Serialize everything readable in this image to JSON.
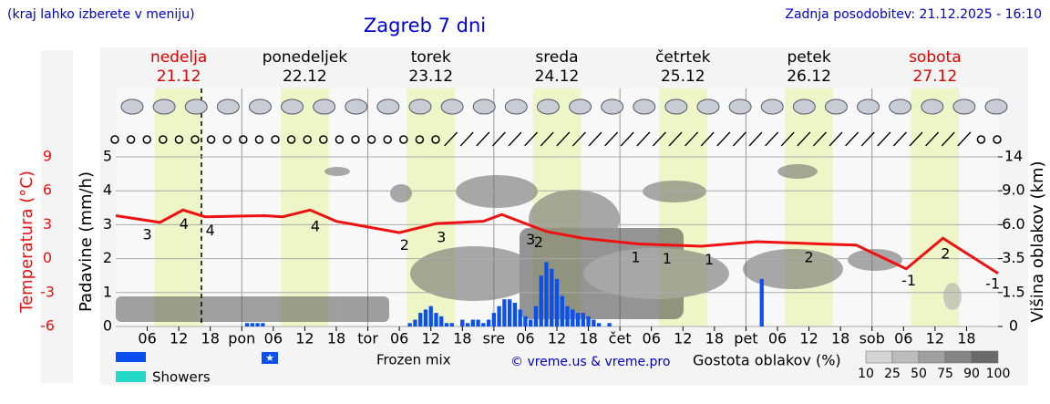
{
  "header": {
    "hint": "(kraj lahko izberete v meniju)",
    "title": "Zagreb 7 dni",
    "updated": "Zadnja posodobitev: 21.12.2025 - 16:10"
  },
  "chart_data": {
    "type": "meteogram",
    "xlim": [
      0,
      168
    ],
    "xticks": [
      {
        "value": 6,
        "label": "06"
      },
      {
        "value": 12,
        "label": "12"
      },
      {
        "value": 18,
        "label": "18"
      },
      {
        "value": 24,
        "label": "pon"
      },
      {
        "value": 30,
        "label": "06"
      },
      {
        "value": 36,
        "label": "12"
      },
      {
        "value": 42,
        "label": "18"
      },
      {
        "value": 48,
        "label": "tor"
      },
      {
        "value": 54,
        "label": "06"
      },
      {
        "value": 60,
        "label": "12"
      },
      {
        "value": 66,
        "label": "18"
      },
      {
        "value": 72,
        "label": "sre"
      },
      {
        "value": 78,
        "label": "06"
      },
      {
        "value": 84,
        "label": "12"
      },
      {
        "value": 90,
        "label": "18"
      },
      {
        "value": 96,
        "label": "čet"
      },
      {
        "value": 102,
        "label": "06"
      },
      {
        "value": 108,
        "label": "12"
      },
      {
        "value": 114,
        "label": "18"
      },
      {
        "value": 120,
        "label": "pet"
      },
      {
        "value": 126,
        "label": "06"
      },
      {
        "value": 132,
        "label": "12"
      },
      {
        "value": 138,
        "label": "18"
      },
      {
        "value": 144,
        "label": "sob"
      },
      {
        "value": 150,
        "label": "06"
      },
      {
        "value": 156,
        "label": "12"
      },
      {
        "value": 162,
        "label": "18"
      }
    ],
    "days": [
      {
        "name": "nedelja",
        "date": "21.12",
        "color": "#e00000"
      },
      {
        "name": "ponedeljek",
        "date": "22.12",
        "color": "#000000"
      },
      {
        "name": "torek",
        "date": "23.12",
        "color": "#000000"
      },
      {
        "name": "sreda",
        "date": "24.12",
        "color": "#000000"
      },
      {
        "name": "četrtek",
        "date": "25.12",
        "color": "#000000"
      },
      {
        "name": "petek",
        "date": "26.12",
        "color": "#000000"
      },
      {
        "name": "sobota",
        "date": "27.12",
        "color": "#e00000"
      }
    ],
    "ylabel": "Padavine (mm/h)",
    "ylim": [
      0,
      5
    ],
    "yticks": [
      0,
      1,
      2,
      3,
      4,
      5
    ],
    "y2label": "Višina oblakov (km)",
    "y2ticks": [
      0,
      1.5,
      3.5,
      {
        "value": 6,
        "label": "6.0"
      },
      {
        "value": 9,
        "label": "9.0"
      },
      14
    ],
    "temperature": {
      "label": "Temperatura (°C)",
      "color": "#ee1111",
      "lim": [
        -6,
        9
      ],
      "ticks": [
        9,
        6,
        3,
        0,
        -3,
        -6
      ],
      "x": [
        0,
        8.4,
        12.8,
        17,
        28.3,
        31.8,
        37,
        42,
        54,
        61,
        70,
        73.5,
        82,
        89,
        99.5,
        111.5,
        122,
        134,
        141,
        150.5,
        157.5,
        168
      ],
      "values": [
        3.8,
        3.2,
        4.3,
        3.7,
        3.8,
        3.7,
        4.3,
        3.3,
        2.3,
        3.1,
        3.3,
        3.9,
        2.4,
        1.8,
        1.3,
        1.1,
        1.5,
        1.3,
        1.2,
        -0.9,
        1.8,
        -1.3
      ]
    },
    "temperature_labels": {
      "x": [
        6,
        13,
        18,
        38,
        55,
        62,
        79,
        80.5,
        99,
        105,
        113,
        132,
        151,
        158,
        167
      ],
      "values": [
        3,
        4,
        4,
        4,
        2,
        3,
        3,
        2,
        1,
        1,
        1,
        2,
        -1,
        2,
        -1
      ]
    },
    "precipitation": {
      "color": "#0a50f0",
      "x": [
        25,
        26,
        27,
        28,
        56,
        57,
        58,
        59,
        60,
        61,
        62,
        63,
        64,
        66,
        67,
        68,
        69,
        70,
        71,
        72,
        73,
        74,
        75,
        76,
        77,
        78,
        79,
        80,
        81,
        82,
        83,
        84,
        85,
        86,
        87,
        88,
        89,
        90,
        91,
        92,
        94,
        123
      ],
      "values": [
        0.1,
        0.1,
        0.1,
        0.1,
        0.1,
        0.2,
        0.4,
        0.5,
        0.6,
        0.4,
        0.3,
        0.1,
        0.1,
        0.2,
        0.1,
        0.2,
        0.2,
        0.1,
        0.2,
        0.4,
        0.6,
        0.8,
        0.8,
        0.7,
        0.5,
        0.3,
        0.2,
        0.6,
        1.5,
        1.9,
        1.7,
        1.4,
        0.9,
        0.6,
        0.5,
        0.4,
        0.4,
        0.3,
        0.2,
        0.1,
        0.1,
        1.4
      ]
    },
    "legend": [
      {
        "name": "Frozen mix"
      },
      {
        "name": "Showers",
        "color": "#22d8c8"
      }
    ],
    "credit": "© vreme.us & vreme.pro",
    "cloud_density": {
      "title": "Gostota oblakov (%)",
      "ticks": [
        10,
        25,
        50,
        75,
        90,
        100
      ],
      "colors": [
        "#d4d4d4",
        "#bdbdbd",
        "#a0a0a0",
        "#858585",
        "#6a6a6a"
      ]
    }
  }
}
